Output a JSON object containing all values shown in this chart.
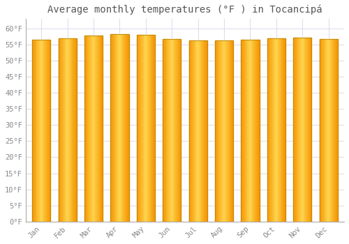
{
  "title": "Average monthly temperatures (°F ) in Tocancipá",
  "months": [
    "Jan",
    "Feb",
    "Mar",
    "Apr",
    "May",
    "Jun",
    "Jul",
    "Aug",
    "Sep",
    "Oct",
    "Nov",
    "Dec"
  ],
  "values": [
    56.5,
    57.0,
    57.7,
    58.1,
    57.9,
    56.7,
    56.3,
    56.3,
    56.5,
    56.8,
    57.2,
    56.7
  ],
  "bar_color_center": "#FFD54F",
  "bar_color_edge": "#F59400",
  "bar_edge_color": "#B8860B",
  "background_color": "#ffffff",
  "plot_bg_color": "#ffffff",
  "grid_color": "#ddddee",
  "yticks": [
    0,
    5,
    10,
    15,
    20,
    25,
    30,
    35,
    40,
    45,
    50,
    55,
    60
  ],
  "ylim": [
    0,
    63
  ],
  "title_fontsize": 10,
  "tick_fontsize": 7.5,
  "title_color": "#555555",
  "tick_color": "#888888",
  "bar_width": 0.7
}
